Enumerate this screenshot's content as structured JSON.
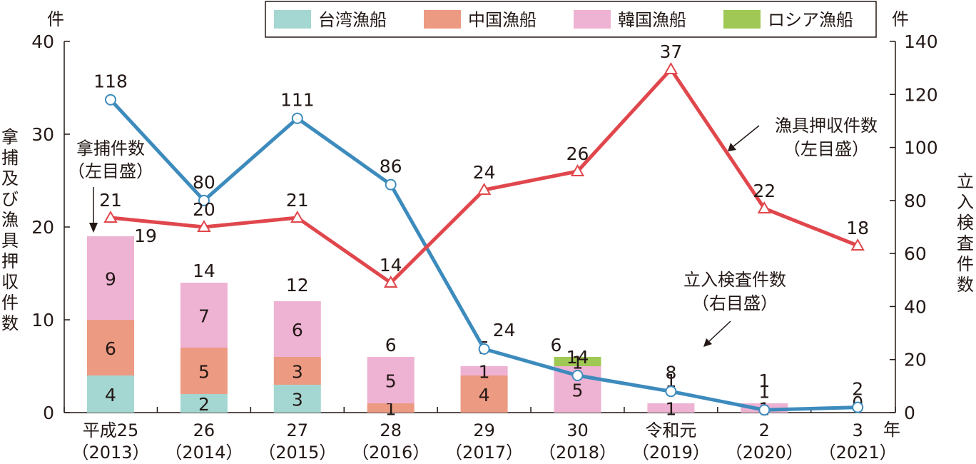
{
  "chart_data": {
    "type": "bar+line",
    "x": {
      "categories": [
        "平成25",
        "26",
        "27",
        "28",
        "29",
        "30",
        "令和元",
        "2",
        "3"
      ],
      "sublabels": [
        "（2013）",
        "（2014）",
        "（2015）",
        "（2016）",
        "（2017）",
        "（2018）",
        "（2019）",
        "（2020）",
        "（2021）"
      ],
      "unit": "年"
    },
    "y_left": {
      "label": "拿捕及び漁具押収件数",
      "unit": "件",
      "ylim": [
        0,
        40
      ],
      "ticks": [
        0,
        10,
        20,
        30,
        40
      ]
    },
    "y_right": {
      "label": "立入検査件数",
      "unit": "件",
      "ylim": [
        0,
        140
      ],
      "ticks": [
        0,
        20,
        40,
        60,
        80,
        100,
        120,
        140
      ]
    },
    "legend": {
      "position": "top",
      "entries": [
        {
          "name": "台湾漁船",
          "color": "#a5d7d2"
        },
        {
          "name": "中国漁船",
          "color": "#ec9a82"
        },
        {
          "name": "韓国漁船",
          "color": "#eeb2d3"
        },
        {
          "name": "ロシア漁船",
          "color": "#9fc954"
        }
      ]
    },
    "series": [
      {
        "name": "拿捕件数",
        "type": "stacked-bar",
        "axis": "left",
        "stacks": [
          {
            "name": "台湾漁船",
            "color": "#a5d7d2",
            "values": [
              4,
              2,
              3,
              0,
              0,
              0,
              0,
              0,
              0
            ]
          },
          {
            "name": "中国漁船",
            "color": "#ec9a82",
            "values": [
              6,
              5,
              3,
              1,
              4,
              0,
              0,
              0,
              0
            ]
          },
          {
            "name": "韓国漁船",
            "color": "#eeb2d3",
            "values": [
              9,
              7,
              6,
              5,
              1,
              5,
              1,
              1,
              0
            ]
          },
          {
            "name": "ロシア漁船",
            "color": "#9fc954",
            "values": [
              0,
              0,
              0,
              0,
              0,
              1,
              0,
              0,
              0
            ]
          }
        ],
        "segment_labels": [
          [
            "4",
            "6",
            "9",
            null
          ],
          [
            "2",
            "5",
            "7",
            null
          ],
          [
            "3",
            "3",
            "6",
            null
          ],
          [
            null,
            "1",
            "5",
            null
          ],
          [
            null,
            "4",
            "1",
            null
          ],
          [
            null,
            null,
            "5",
            "1"
          ],
          [
            null,
            null,
            "1",
            null
          ],
          [
            null,
            null,
            "1",
            null
          ],
          [
            null,
            null,
            null,
            null
          ]
        ],
        "totals": [
          "19",
          "14",
          "12",
          "6",
          "5",
          "6",
          "1",
          "1",
          "0"
        ]
      },
      {
        "name": "漁具押収件数",
        "type": "line",
        "axis": "left",
        "color": "#e0474c",
        "marker": "triangle",
        "values": [
          21,
          20,
          21,
          14,
          24,
          26,
          37,
          22,
          18
        ],
        "labels": [
          "21",
          "20",
          "21",
          "14",
          "24",
          "26",
          "37",
          "22",
          "18"
        ]
      },
      {
        "name": "立入検査件数",
        "type": "line",
        "axis": "right",
        "color": "#3d8bbd",
        "marker": "circle",
        "values": [
          118,
          80,
          111,
          86,
          24,
          14,
          8,
          1,
          2
        ],
        "labels": [
          "118",
          "80",
          "111",
          "86",
          "24",
          "14",
          "8",
          "1",
          "2"
        ]
      }
    ],
    "annotations": [
      {
        "lines": [
          "拿捕件数",
          "（左目盛）"
        ],
        "target": "拿捕件数"
      },
      {
        "lines": [
          "漁具押収件数",
          "（左目盛）"
        ],
        "target": "漁具押収件数"
      },
      {
        "lines": [
          "立入検査件数",
          "（右目盛）"
        ],
        "target": "立入検査件数"
      }
    ]
  }
}
